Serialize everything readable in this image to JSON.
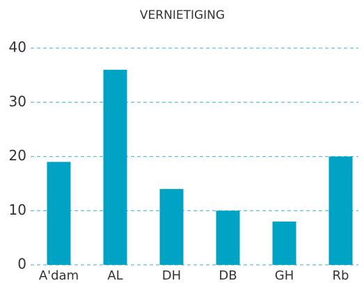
{
  "chart_data": {
    "type": "bar",
    "title": "VERNIETIGING",
    "categories": [
      "A'dam",
      "AL",
      "DH",
      "DB",
      "GH",
      "Rb"
    ],
    "values": [
      19,
      36,
      14,
      10,
      8,
      20
    ],
    "color": "#00a3c4",
    "ylim": [
      0,
      40
    ],
    "yticks": [
      0,
      10,
      20,
      30,
      40
    ],
    "grid": true
  }
}
